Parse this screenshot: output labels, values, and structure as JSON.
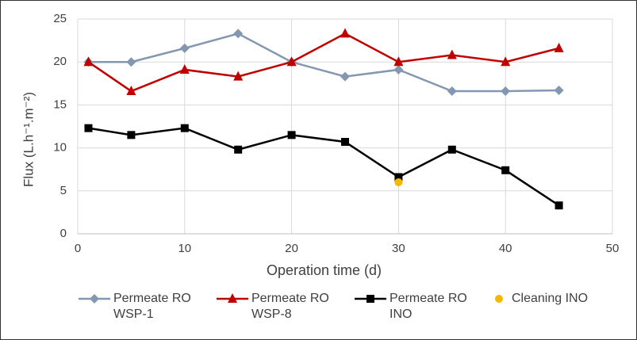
{
  "chart_data": {
    "type": "line",
    "x_label": "Operation time (d)",
    "y_label": "Flux  (L.h⁻¹.m⁻²)",
    "xlim": [
      0,
      50
    ],
    "xticks": [
      0,
      10,
      20,
      30,
      40,
      50
    ],
    "ylim": [
      0,
      25
    ],
    "yticks": [
      0,
      5,
      10,
      15,
      20,
      25
    ],
    "grid": true,
    "legend": "bottom",
    "series": [
      {
        "name": "Permeate RO WSP-1",
        "color": "#8497b0",
        "marker": "diamond",
        "line": true,
        "x": [
          1,
          5,
          10,
          15,
          20,
          25,
          30,
          35,
          40,
          45
        ],
        "values": [
          20,
          20,
          21.6,
          23.3,
          20,
          18.3,
          19.1,
          16.6,
          16.6,
          16.7
        ]
      },
      {
        "name": "Permeate RO WSP-8",
        "color": "#c00000",
        "marker": "triangle",
        "line": true,
        "x": [
          1,
          5,
          10,
          15,
          20,
          25,
          30,
          35,
          40,
          45
        ],
        "values": [
          20,
          16.6,
          19.1,
          18.3,
          20,
          23.3,
          20,
          20.8,
          20,
          21.6
        ]
      },
      {
        "name": "Permeate RO INO",
        "color": "#000000",
        "marker": "square",
        "line": true,
        "x": [
          1,
          5,
          10,
          15,
          20,
          25,
          30,
          35,
          40,
          45
        ],
        "values": [
          12.3,
          11.5,
          12.3,
          9.8,
          11.5,
          10.7,
          6.6,
          9.8,
          7.4,
          3.3
        ]
      },
      {
        "name": "Cleaning INO",
        "color": "#f5b800",
        "marker": "circle",
        "line": false,
        "x": [
          30
        ],
        "values": [
          6.0
        ]
      }
    ]
  }
}
